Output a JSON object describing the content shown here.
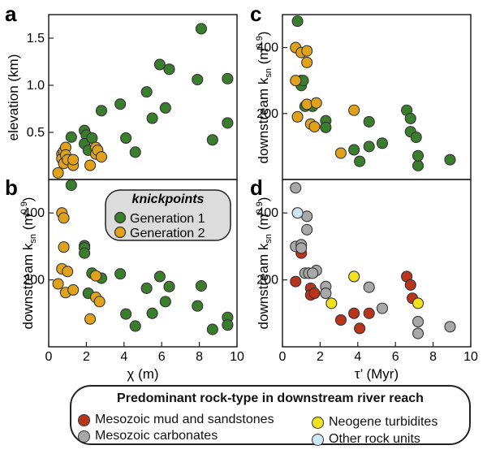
{
  "panel_labels": [
    "a",
    "b",
    "c",
    "d"
  ],
  "knickpoint_legend": {
    "title": "knickpoints",
    "items": [
      {
        "label": "Generation 1",
        "color": "#3a7d2c"
      },
      {
        "label": "Generation 2",
        "color": "#e0a21a"
      }
    ]
  },
  "rock_legend": {
    "title": "Predominant rock-type in downstream river reach",
    "items": [
      {
        "label": "Mesozoic mud and sandstones",
        "color": "#b8341c"
      },
      {
        "label": "Mesozoic carbonates",
        "color": "#a8a8a8"
      },
      {
        "label": "Neogene turbidites",
        "color": "#f2e21e"
      },
      {
        "label": "Other rock units",
        "color": "#cfe6f5"
      }
    ]
  },
  "colors": {
    "generation_1": "#3a7d2c",
    "generation_2": "#e0a21a",
    "mesozoic_mud": "#b8341c",
    "mesozoic_carbonates": "#a8a8a8",
    "neogene_turbidites": "#f2e21e",
    "other_rock": "#cfe6f5"
  },
  "chart_data": [
    {
      "panel": "a",
      "type": "scatter",
      "xlabel": "",
      "ylabel": "elevation (km)",
      "xlim": [
        0,
        10
      ],
      "ylim": [
        0,
        1.75
      ],
      "yticks": [
        "0.5",
        "1.0",
        "1.5"
      ],
      "series": [
        {
          "color": "#3a7d2c",
          "points": [
            [
              1.2,
              0.45
            ],
            [
              1.9,
              0.52
            ],
            [
              2.0,
              0.47
            ],
            [
              1.9,
              0.38
            ],
            [
              2.3,
              0.44
            ],
            [
              2.1,
              0.31
            ],
            [
              2.8,
              0.73
            ],
            [
              3.8,
              0.8
            ],
            [
              4.1,
              0.44
            ],
            [
              4.6,
              0.29
            ],
            [
              5.2,
              0.93
            ],
            [
              5.5,
              0.65
            ],
            [
              5.9,
              1.22
            ],
            [
              6.2,
              0.76
            ],
            [
              6.4,
              1.17
            ],
            [
              7.9,
              1.06
            ],
            [
              8.1,
              1.6
            ],
            [
              8.7,
              0.42
            ],
            [
              9.5,
              1.07
            ],
            [
              9.5,
              0.6
            ]
          ]
        },
        {
          "color": "#e0a21a",
          "points": [
            [
              0.5,
              0.07
            ],
            [
              0.7,
              0.27
            ],
            [
              0.7,
              0.22
            ],
            [
              0.8,
              0.3
            ],
            [
              0.9,
              0.34
            ],
            [
              0.8,
              0.17
            ],
            [
              0.9,
              0.26
            ],
            [
              1.0,
              0.21
            ],
            [
              1.3,
              0.15
            ],
            [
              1.3,
              0.21
            ],
            [
              2.2,
              0.15
            ],
            [
              2.5,
              0.34
            ],
            [
              2.5,
              0.27
            ],
            [
              2.6,
              0.31
            ],
            [
              2.8,
              0.24
            ]
          ]
        }
      ]
    },
    {
      "panel": "b",
      "type": "scatter",
      "xlabel": "χ (m)",
      "ylabel": "downstream k_sn (m^0.9)",
      "xlim": [
        0,
        10
      ],
      "ylim": [
        0,
        500
      ],
      "xticks": [
        "0",
        "2",
        "4",
        "6",
        "8",
        "10"
      ],
      "yticks": [
        "200",
        "400"
      ],
      "series": [
        {
          "color": "#3a7d2c",
          "points": [
            [
              1.2,
              483
            ],
            [
              1.9,
              302
            ],
            [
              1.9,
              296
            ],
            [
              1.9,
              280
            ],
            [
              2.1,
              160
            ],
            [
              2.3,
              220
            ],
            [
              2.8,
              205
            ],
            [
              3.8,
              218
            ],
            [
              4.1,
              98
            ],
            [
              4.6,
              62
            ],
            [
              5.2,
              175
            ],
            [
              5.5,
              100
            ],
            [
              5.9,
              210
            ],
            [
              6.2,
              135
            ],
            [
              6.4,
              180
            ],
            [
              7.9,
              122
            ],
            [
              8.1,
              182
            ],
            [
              8.7,
              52
            ],
            [
              9.5,
              88
            ],
            [
              9.5,
              65
            ]
          ]
        },
        {
          "color": "#e0a21a",
          "points": [
            [
              0.5,
              188
            ],
            [
              0.7,
              400
            ],
            [
              0.7,
              233
            ],
            [
              0.8,
              385
            ],
            [
              0.8,
              298
            ],
            [
              0.9,
              162
            ],
            [
              1.0,
              225
            ],
            [
              1.3,
              170
            ],
            [
              2.2,
              83
            ],
            [
              2.5,
              212
            ],
            [
              2.5,
              148
            ],
            [
              2.7,
              135
            ]
          ]
        }
      ]
    },
    {
      "panel": "c",
      "type": "scatter",
      "xlabel": "",
      "ylabel": "downstream k_sn (m^0.9)",
      "xlim": [
        0,
        10
      ],
      "ylim": [
        0,
        500
      ],
      "yticks": [
        "200",
        "400"
      ],
      "series": [
        {
          "color": "#3a7d2c",
          "points": [
            [
              0.8,
              480
            ],
            [
              1.0,
              300
            ],
            [
              1.0,
              285
            ],
            [
              1.1,
              300
            ],
            [
              1.2,
              222
            ],
            [
              1.6,
              222
            ],
            [
              2.3,
              178
            ],
            [
              2.3,
              158
            ],
            [
              3.8,
              90
            ],
            [
              4.1,
              55
            ],
            [
              4.6,
              175
            ],
            [
              4.6,
              100
            ],
            [
              5.3,
              110
            ],
            [
              6.6,
              210
            ],
            [
              6.8,
              185
            ],
            [
              6.8,
              145
            ],
            [
              7.1,
              128
            ],
            [
              7.2,
              42
            ],
            [
              7.2,
              72
            ],
            [
              8.9,
              60
            ]
          ]
        },
        {
          "color": "#e0a21a",
          "points": [
            [
              0.7,
              400
            ],
            [
              0.7,
              300
            ],
            [
              0.8,
              190
            ],
            [
              1.0,
              385
            ],
            [
              1.3,
              390
            ],
            [
              1.3,
              355
            ],
            [
              1.3,
              228
            ],
            [
              1.5,
              168
            ],
            [
              1.7,
              160
            ],
            [
              1.8,
              232
            ],
            [
              3.1,
              80
            ],
            [
              3.8,
              210
            ]
          ]
        }
      ]
    },
    {
      "panel": "d",
      "type": "scatter",
      "xlabel": "τ’ (Myr)",
      "ylabel": "downstream k_sn (m^0.9)",
      "xlim": [
        0,
        10
      ],
      "ylim": [
        0,
        500
      ],
      "xticks": [
        "0",
        "2",
        "4",
        "6",
        "8",
        "10"
      ],
      "yticks": [
        "200",
        "400"
      ],
      "series": [
        {
          "color": "#b8341c",
          "points": [
            [
              0.7,
              195
            ],
            [
              1.0,
              280
            ],
            [
              1.5,
              175
            ],
            [
              1.5,
              155
            ],
            [
              1.7,
              160
            ],
            [
              3.1,
              80
            ],
            [
              3.8,
              100
            ],
            [
              4.1,
              55
            ],
            [
              4.6,
              100
            ],
            [
              6.6,
              210
            ],
            [
              6.8,
              185
            ],
            [
              6.9,
              145
            ]
          ]
        },
        {
          "color": "#a8a8a8",
          "points": [
            [
              0.7,
              475
            ],
            [
              0.7,
              300
            ],
            [
              1.0,
              305
            ],
            [
              1.0,
              295
            ],
            [
              1.2,
              220
            ],
            [
              1.3,
              390
            ],
            [
              1.3,
              350
            ],
            [
              1.4,
              220
            ],
            [
              1.8,
              228
            ],
            [
              1.6,
              220
            ],
            [
              2.3,
              180
            ],
            [
              2.3,
              160
            ],
            [
              4.6,
              178
            ],
            [
              5.3,
              115
            ],
            [
              7.2,
              75
            ],
            [
              7.2,
              40
            ],
            [
              8.9,
              60
            ]
          ]
        },
        {
          "color": "#f2e21e",
          "points": [
            [
              2.6,
              130
            ],
            [
              3.8,
              210
            ],
            [
              7.2,
              130
            ]
          ]
        },
        {
          "color": "#cfe6f5",
          "points": [
            [
              0.8,
              400
            ]
          ]
        }
      ]
    }
  ]
}
